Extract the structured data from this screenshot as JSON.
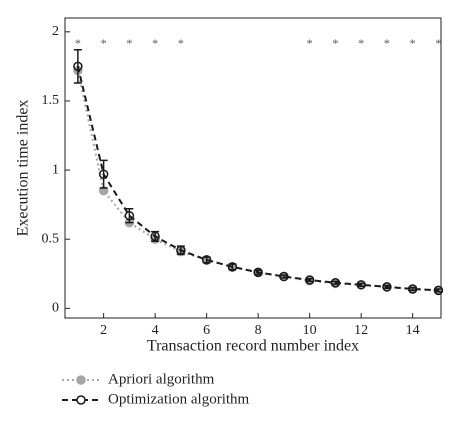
{
  "chart_data": {
    "type": "line",
    "x_label": "Transaction record number index",
    "y_label": "Execution time index",
    "x": [
      1,
      2,
      3,
      4,
      5,
      6,
      7,
      8,
      9,
      10,
      11,
      12,
      13,
      14,
      15
    ],
    "series": [
      {
        "name": "Apriori algorithm",
        "color": "#a6a6a6",
        "style": "dotted",
        "marker": "filled",
        "values": [
          1.72,
          0.85,
          0.62,
          0.5,
          0.41,
          0.35,
          0.3,
          0.26,
          0.23,
          0.2,
          0.18,
          0.17,
          0.155,
          0.14,
          0.13
        ]
      },
      {
        "name": "Optimization algorithm",
        "color": "#1a1a1a",
        "style": "dashed",
        "marker": "open",
        "values": [
          1.75,
          0.97,
          0.67,
          0.52,
          0.42,
          0.35,
          0.3,
          0.26,
          0.23,
          0.205,
          0.185,
          0.17,
          0.155,
          0.14,
          0.13
        ],
        "errors": [
          0.12,
          0.1,
          0.05,
          0.035,
          0.03,
          0.02,
          0.02,
          0.015,
          0.01,
          0.01,
          0.01,
          0.01,
          0.01,
          0.01,
          0.01
        ]
      }
    ],
    "significance": {
      "x": [
        1,
        2,
        3,
        4,
        5,
        10,
        11,
        12,
        13,
        14,
        15
      ],
      "label": "*"
    },
    "xlim": [
      0.5,
      15.1
    ],
    "ylim": [
      -0.07,
      2.1
    ],
    "xticks": [
      2,
      4,
      6,
      8,
      10,
      12,
      14
    ],
    "yticks": [
      0,
      0.5,
      1,
      1.5,
      2
    ]
  }
}
